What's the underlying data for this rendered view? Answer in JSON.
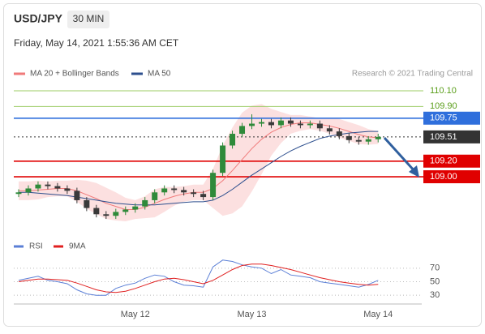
{
  "chart_data": [
    {
      "type": "candlestick",
      "title": "USD/JPY",
      "timeframe": "30 MIN",
      "subtitle": "Friday, May 14, 2021 1:55:36 AM CET",
      "attribution": "Research © 2021 Trading Central",
      "categories": [
        null,
        null,
        null,
        null,
        null,
        null,
        null,
        null,
        null,
        null,
        null,
        null,
        "May 12",
        null,
        null,
        null,
        null,
        null,
        null,
        null,
        null,
        null,
        null,
        null,
        "May 13",
        null,
        null,
        null,
        null,
        null,
        null,
        null,
        null,
        null,
        null,
        null,
        null,
        "May 14"
      ],
      "open": [
        108.78,
        108.8,
        108.85,
        108.9,
        108.88,
        108.85,
        108.82,
        108.7,
        108.6,
        108.52,
        108.5,
        108.55,
        108.58,
        108.62,
        108.7,
        108.8,
        108.85,
        108.83,
        108.8,
        108.78,
        108.74,
        109.05,
        109.4,
        109.55,
        109.65,
        109.68,
        109.7,
        109.66,
        109.72,
        109.68,
        109.66,
        109.68,
        109.62,
        109.58,
        109.52,
        109.47,
        109.45,
        109.48
      ],
      "high": [
        108.84,
        108.89,
        108.94,
        108.94,
        108.92,
        108.89,
        108.86,
        108.74,
        108.64,
        108.56,
        108.59,
        108.62,
        108.66,
        108.74,
        108.84,
        108.89,
        108.89,
        108.87,
        108.84,
        108.82,
        109.09,
        109.44,
        109.59,
        109.69,
        109.8,
        109.74,
        109.74,
        109.76,
        109.76,
        109.72,
        109.72,
        109.72,
        109.66,
        109.62,
        109.56,
        109.51,
        109.52,
        109.55
      ],
      "low": [
        108.74,
        108.76,
        108.81,
        108.84,
        108.81,
        108.78,
        108.66,
        108.56,
        108.48,
        108.46,
        108.46,
        108.51,
        108.54,
        108.58,
        108.66,
        108.76,
        108.79,
        108.76,
        108.74,
        108.7,
        108.7,
        109.01,
        109.36,
        109.51,
        109.61,
        109.64,
        109.62,
        109.62,
        109.64,
        109.62,
        109.62,
        109.58,
        109.54,
        109.48,
        109.43,
        109.41,
        109.41,
        109.44
      ],
      "close": [
        108.8,
        108.85,
        108.9,
        108.88,
        108.85,
        108.82,
        108.7,
        108.6,
        108.52,
        108.5,
        108.55,
        108.58,
        108.62,
        108.7,
        108.8,
        108.85,
        108.83,
        108.8,
        108.78,
        108.74,
        109.05,
        109.4,
        109.55,
        109.65,
        109.68,
        109.7,
        109.66,
        109.72,
        109.68,
        109.66,
        109.68,
        109.62,
        109.58,
        109.52,
        109.47,
        109.45,
        109.48,
        109.51
      ],
      "up_color": "#2f8a3a",
      "down_color": "#3a3a3a",
      "overlays": [
        {
          "name": "MA 20 + Bollinger Bands",
          "color": "#f07a7a",
          "band_color": "#fbd3d3",
          "values": [
            108.82,
            108.82,
            108.83,
            108.84,
            108.85,
            108.85,
            108.82,
            108.77,
            108.72,
            108.66,
            108.62,
            108.58,
            108.58,
            108.61,
            108.66,
            108.71,
            108.75,
            108.78,
            108.8,
            108.8,
            108.85,
            108.95,
            109.08,
            109.22,
            109.36,
            109.48,
            109.57,
            109.63,
            109.67,
            109.69,
            109.69,
            109.67,
            109.65,
            109.62,
            109.58,
            109.54,
            109.51,
            109.5
          ],
          "upper": [
            108.94,
            108.94,
            108.95,
            108.94,
            108.95,
            108.95,
            108.96,
            108.95,
            108.92,
            108.86,
            108.8,
            108.73,
            108.7,
            108.75,
            108.84,
            108.87,
            108.87,
            108.88,
            108.9,
            108.9,
            109.1,
            109.4,
            109.63,
            109.82,
            109.91,
            109.93,
            109.87,
            109.83,
            109.79,
            109.79,
            109.77,
            109.75,
            109.75,
            109.74,
            109.7,
            109.66,
            109.61,
            109.58
          ],
          "lower": [
            108.7,
            108.7,
            108.71,
            108.74,
            108.75,
            108.75,
            108.68,
            108.59,
            108.52,
            108.46,
            108.44,
            108.43,
            108.46,
            108.47,
            108.48,
            108.55,
            108.63,
            108.68,
            108.7,
            108.7,
            108.6,
            108.5,
            108.53,
            108.62,
            108.81,
            109.03,
            109.27,
            109.43,
            109.55,
            109.59,
            109.61,
            109.59,
            109.55,
            109.5,
            109.46,
            109.42,
            109.41,
            109.42
          ]
        },
        {
          "name": "MA 50",
          "color": "#2d4f8e",
          "values": [
            108.8,
            108.8,
            108.79,
            108.78,
            108.77,
            108.76,
            108.74,
            108.72,
            108.7,
            108.68,
            108.66,
            108.65,
            108.64,
            108.64,
            108.64,
            108.65,
            108.66,
            108.67,
            108.68,
            108.68,
            108.7,
            108.76,
            108.84,
            108.93,
            109.02,
            109.1,
            109.18,
            109.26,
            109.33,
            109.39,
            109.44,
            109.49,
            109.52,
            109.54,
            109.56,
            109.57,
            109.58,
            109.58
          ]
        }
      ],
      "levels": [
        {
          "value": 110.1,
          "label": "110.10",
          "color": "#9ccc65",
          "style": "plain"
        },
        {
          "value": 109.9,
          "label": "109.90",
          "color": "#9ccc65",
          "style": "plain"
        },
        {
          "value": 109.75,
          "color": "#2f6fdc",
          "style": "box"
        },
        {
          "value": 109.51,
          "color": "#333333",
          "style": "dotted"
        },
        {
          "value": 109.2,
          "label": "109.20",
          "color": "#e00000",
          "style": "box"
        },
        {
          "value": 109.0,
          "label": "109.00",
          "color": "#e00000",
          "style": "box"
        }
      ],
      "ylim": [
        108.305,
        110.225
      ]
    },
    {
      "type": "line",
      "series": [
        {
          "name": "RSI",
          "color": "#5b7fd6",
          "values": [
            52,
            55,
            58,
            52,
            50,
            47,
            38,
            32,
            30,
            30,
            40,
            45,
            48,
            55,
            60,
            58,
            50,
            45,
            44,
            42,
            72,
            82,
            80,
            75,
            72,
            70,
            62,
            68,
            60,
            58,
            56,
            50,
            48,
            46,
            44,
            42,
            46,
            52
          ]
        },
        {
          "name": "9MA",
          "color": "#e02020",
          "values": [
            50,
            52,
            54,
            54,
            53,
            52,
            48,
            43,
            38,
            35,
            34,
            36,
            40,
            45,
            50,
            54,
            55,
            53,
            50,
            47,
            52,
            60,
            68,
            74,
            76,
            76,
            74,
            71,
            68,
            64,
            60,
            56,
            53,
            50,
            48,
            46,
            45,
            46
          ]
        }
      ],
      "ylim": [
        17,
        89
      ],
      "yticks": [
        30,
        50,
        70
      ]
    }
  ]
}
